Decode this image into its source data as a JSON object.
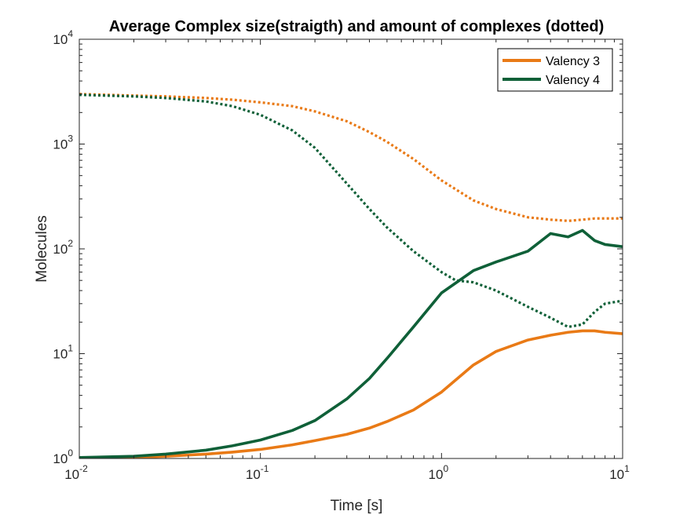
{
  "chart_data": {
    "type": "line",
    "title": "Average Complex size(straigth) and amount of complexes (dotted)",
    "xlabel": "Time [s]",
    "ylabel": "Molecules",
    "xscale": "log",
    "yscale": "log",
    "xlim": [
      0.01,
      10
    ],
    "ylim": [
      1,
      10000
    ],
    "x_ticks": [
      {
        "base": "10",
        "exp": "-2",
        "value": 0.01
      },
      {
        "base": "10",
        "exp": "-1",
        "value": 0.1
      },
      {
        "base": "10",
        "exp": "0",
        "value": 1
      },
      {
        "base": "10",
        "exp": "1",
        "value": 10
      }
    ],
    "y_ticks": [
      {
        "base": "10",
        "exp": "0",
        "value": 1
      },
      {
        "base": "10",
        "exp": "1",
        "value": 10
      },
      {
        "base": "10",
        "exp": "2",
        "value": 100
      },
      {
        "base": "10",
        "exp": "3",
        "value": 1000
      },
      {
        "base": "10",
        "exp": "4",
        "value": 10000
      }
    ],
    "grid": false,
    "legend_position": "top-right",
    "series": [
      {
        "name": "Valency 3",
        "color": "#e97a16",
        "style": "solid",
        "x": [
          0.01,
          0.02,
          0.03,
          0.05,
          0.07,
          0.1,
          0.15,
          0.2,
          0.3,
          0.4,
          0.5,
          0.7,
          1.0,
          1.5,
          2.0,
          3.0,
          4.0,
          5.0,
          6.0,
          7.0,
          8.0,
          10.0
        ],
        "y": [
          1.0,
          1.02,
          1.05,
          1.1,
          1.15,
          1.22,
          1.35,
          1.48,
          1.7,
          1.95,
          2.25,
          2.9,
          4.3,
          7.8,
          10.5,
          13.5,
          15.0,
          16.0,
          16.5,
          16.5,
          16.0,
          15.5
        ]
      },
      {
        "name": "Valency 4",
        "color": "#0f6038",
        "style": "solid",
        "x": [
          0.01,
          0.02,
          0.03,
          0.05,
          0.07,
          0.1,
          0.15,
          0.2,
          0.3,
          0.4,
          0.5,
          0.7,
          1.0,
          1.5,
          2.0,
          3.0,
          4.0,
          5.0,
          6.0,
          7.0,
          8.0,
          10.0
        ],
        "y": [
          1.02,
          1.05,
          1.1,
          1.2,
          1.32,
          1.5,
          1.85,
          2.3,
          3.7,
          5.8,
          9.0,
          18.0,
          38.0,
          62.0,
          75.0,
          95.0,
          140.0,
          130.0,
          150.0,
          120.0,
          110.0,
          105.0
        ]
      },
      {
        "name": "Valency 3",
        "color": "#e97a16",
        "style": "dotted",
        "x": [
          0.01,
          0.02,
          0.03,
          0.05,
          0.07,
          0.1,
          0.15,
          0.2,
          0.3,
          0.4,
          0.5,
          0.7,
          1.0,
          1.5,
          2.0,
          3.0,
          4.0,
          5.0,
          6.0,
          7.0,
          8.0,
          10.0
        ],
        "y": [
          3000,
          2900,
          2850,
          2750,
          2650,
          2500,
          2300,
          2050,
          1650,
          1300,
          1050,
          720,
          450,
          290,
          240,
          200,
          190,
          185,
          190,
          195,
          195,
          195
        ]
      },
      {
        "name": "Valency 4",
        "color": "#0f6038",
        "style": "dotted",
        "x": [
          0.01,
          0.02,
          0.03,
          0.05,
          0.07,
          0.1,
          0.15,
          0.2,
          0.3,
          0.4,
          0.5,
          0.7,
          1.0,
          1.2,
          1.5,
          2.0,
          3.0,
          4.0,
          5.0,
          6.0,
          7.0,
          8.0,
          10.0
        ],
        "y": [
          2950,
          2850,
          2750,
          2550,
          2300,
          1900,
          1350,
          920,
          420,
          240,
          160,
          95,
          60,
          50,
          48,
          40,
          28,
          22,
          18,
          19,
          25,
          30,
          32
        ]
      }
    ],
    "legend": [
      {
        "label": "Valency 3",
        "color": "#e97a16"
      },
      {
        "label": "Valency 4",
        "color": "#0f6038"
      }
    ]
  }
}
